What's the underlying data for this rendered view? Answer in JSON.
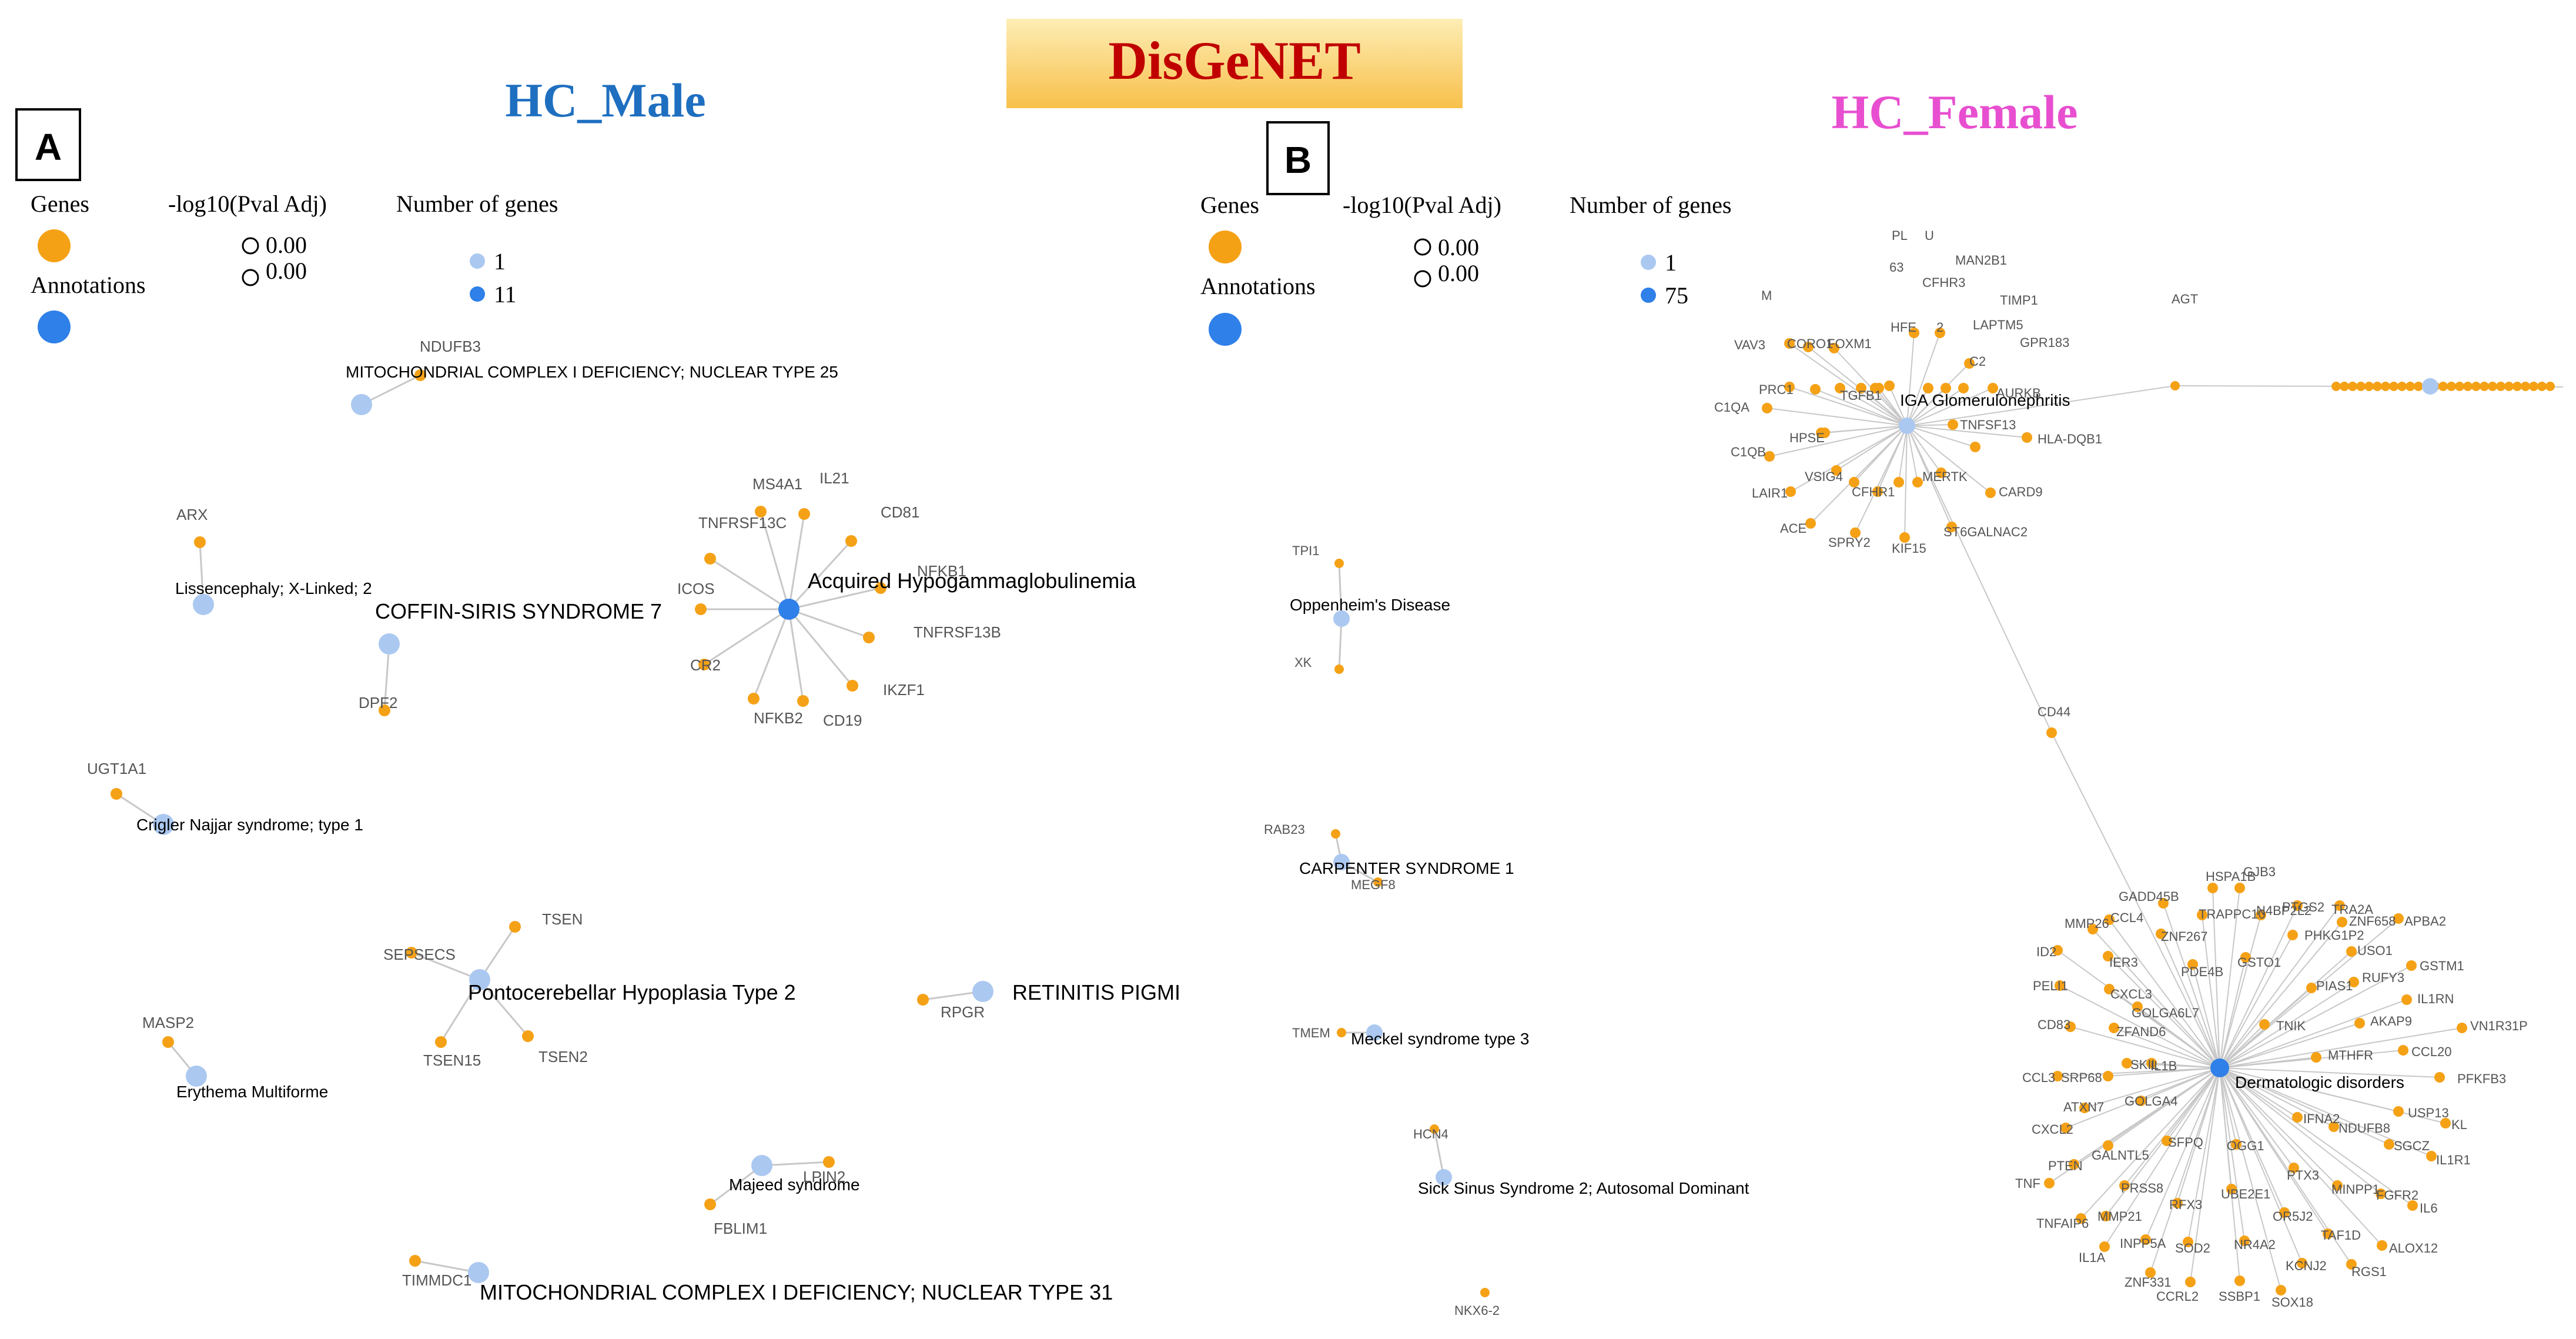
{
  "header": {
    "title": "DisGeNET",
    "male_title": "HC_Male",
    "female_title": "HC_Female",
    "panel_a": "A",
    "panel_b": "B",
    "colors": {
      "title_red": "#c00000",
      "male_blue": "#1f6fc0",
      "female_pink": "#e84fd0",
      "title_bg_top": "#fde9a8",
      "title_bg_bottom": "#f8c24a"
    }
  },
  "legend": {
    "genes": "Genes",
    "annotations": "Annotations",
    "pval_header": "-log10(Pval Adj)",
    "ngenes_header": "Number of genes",
    "male_pval": [
      "0.00",
      "0.00"
    ],
    "male_counts": [
      "1",
      "11"
    ],
    "female_pval": [
      "0.00",
      "0.00"
    ],
    "female_counts": [
      "1",
      "75"
    ]
  },
  "colors": {
    "gene": "#f5a116",
    "annotation_big": "#2f80e8",
    "annotation_small": "#abc8f0",
    "edge": "#c8c8c8"
  },
  "male_network": {
    "annotations": [
      "MITOCHONDRIAL COMPLEX I DEFICIENCY; NUCLEAR TYPE 25",
      "Lissencephaly; X-Linked; 2",
      "COFFIN-SIRIS SYNDROME 7",
      "Acquired Hypogammaglobulinemia",
      "Crigler Najjar syndrome; type 1",
      "Pontocerebellar Hypoplasia Type 2",
      "RETINITIS PIGMI",
      "Erythema Multiforme",
      "Majeed syndrome",
      "MITOCHONDRIAL COMPLEX I DEFICIENCY; NUCLEAR TYPE 31"
    ],
    "genes": [
      "NDUFB3",
      "ARX",
      "DPF2",
      "MS4A1",
      "IL21",
      "CD81",
      "TNFRSF13C",
      "NFKB1",
      "ICOS",
      "TNFRSF13B",
      "CR2",
      "IKZF1",
      "NFKB2",
      "CD19",
      "UGT1A1",
      "TSEN",
      "SEPSECS",
      "TSEN15",
      "TSEN2",
      "RPGR",
      "MASP2",
      "LPIN2",
      "FBLIM1",
      "TIMMDC1"
    ]
  },
  "female_network": {
    "annotations": [
      "Oppenheim's Disease",
      "CARPENTER SYNDROME 1",
      "Meckel syndrome type 3",
      "Sick Sinus Syndrome 2; Autosomal Dominant",
      "IGA Glomerulonephritis",
      "Dermatologic disorders"
    ],
    "small_genes": [
      "TPI1",
      "XK",
      "RAB23",
      "MEGF8",
      "TMEM",
      "HCN4",
      "NKX6-2",
      "CD44"
    ],
    "iga_genes": [
      "PL",
      "U",
      "MAN2B1",
      "63",
      "CFHR3",
      "TIMP1",
      "M",
      "AGT",
      "LAPTM5",
      "VAV3",
      "CORO1",
      "FOXM1",
      "HFE",
      "2",
      "GPR183",
      "C2",
      "PRC1",
      "TGFB1",
      "AURKB",
      "C1QA",
      "HPSE",
      "TNFSF13",
      "HLA-DQB1",
      "C1QB",
      "VSIG4",
      "MERTK",
      "LAIR1",
      "CFHR1",
      "CARD9",
      "ACE",
      "SPRY2",
      "KIF15",
      "ST6GALNAC2"
    ],
    "derm_genes": [
      "HSPA1B",
      "GJB3",
      "GADD45B",
      "PTGS2",
      "TRA2A",
      "CCL4",
      "TRAPPC10",
      "N4BP2L2",
      "MMP26",
      "ZNF267",
      "ZNF658",
      "APBA2",
      "PHKG1P2",
      "ID2",
      "IER3",
      "PDE4B",
      "GSTO1",
      "USO1",
      "RUFY3",
      "GSTM1",
      "PELI1",
      "CXCL3",
      "PIAS1",
      "IL1RN",
      "GOLGA6L7",
      "AKAP9",
      "CD83",
      "ZFAND6",
      "TNIK",
      "VN1R31P",
      "CCL20",
      "MTHFR",
      "SKIL",
      "IL1B",
      "CCL3",
      "SRP68",
      "PFKFB3",
      "GOLGA4",
      "ATXN7",
      "IFNA2",
      "NDUFB8",
      "USP13",
      "CXCL2",
      "GALNTL5",
      "KL",
      "PTEN",
      "SFPQ",
      "OGG1",
      "SGCZ",
      "IL1R1",
      "TNF",
      "PTX3",
      "MINPP1",
      "PRSS8",
      "RFX3",
      "UBE2E1",
      "FGFR2",
      "IL6",
      "MMP21",
      "OR5J2",
      "TNFAIP6",
      "INPP5A",
      "SOD2",
      "NR4A2",
      "TAF1D",
      "ALOX12",
      "IL1A",
      "KCNJ2",
      "RGS1",
      "ZNF331",
      "CCRL2",
      "SSBP1",
      "SOX18"
    ]
  }
}
